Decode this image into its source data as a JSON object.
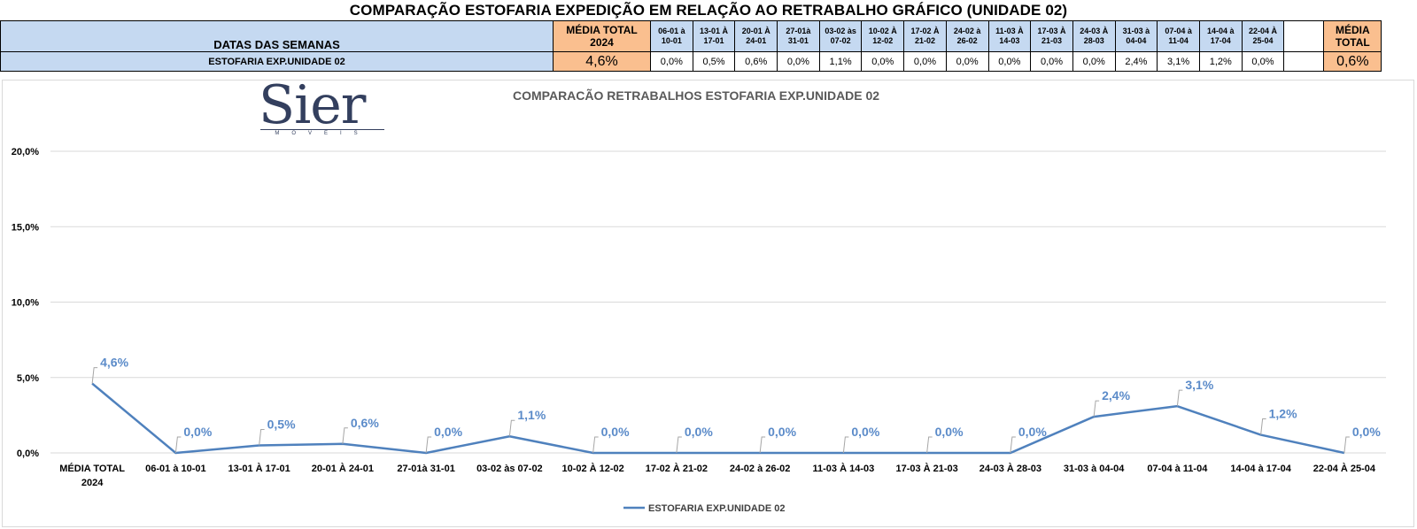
{
  "page_title": "COMPARAÇÃO ESTOFARIA EXPEDIÇÃO  EM RELAÇÃO AO RETRABALHO GRÁFICO (UNIDADE 02)",
  "table": {
    "header_label": "DATAS DAS SEMANAS",
    "avg_2024_header": [
      "MÉDIA TOTAL",
      "2024"
    ],
    "week_headers": [
      [
        "06-01 à",
        "10-01"
      ],
      [
        "13-01 À",
        "17-01"
      ],
      [
        "20-01 À",
        "24-01"
      ],
      [
        "27-01à",
        "31-01"
      ],
      [
        "03-02 às",
        "07-02"
      ],
      [
        "10-02 À",
        "12-02"
      ],
      [
        "17-02 À",
        "21-02"
      ],
      [
        "24-02 à",
        "26-02"
      ],
      [
        "11-03 À",
        "14-03"
      ],
      [
        "17-03 À",
        "21-03"
      ],
      [
        "24-03 À",
        "28-03"
      ],
      [
        "31-03 à",
        "04-04"
      ],
      [
        "07-04 à",
        "11-04"
      ],
      [
        "14-04 à",
        "17-04"
      ],
      [
        "22-04 À",
        "25-04"
      ]
    ],
    "avg_total_header": [
      "MÉDIA",
      "TOTAL"
    ],
    "row_label": "ESTOFARIA EXP.UNIDADE 02",
    "avg_2024_value": "4,6%",
    "week_values": [
      "0,0%",
      "0,5%",
      "0,6%",
      "0,0%",
      "1,1%",
      "0,0%",
      "0,0%",
      "0,0%",
      "0,0%",
      "0,0%",
      "0,0%",
      "2,4%",
      "3,1%",
      "1,2%",
      "0,0%"
    ],
    "avg_total_value": "0,6%"
  },
  "logo": {
    "text": "Sier",
    "subtext": "MÓVEIS"
  },
  "colors": {
    "header_blue": "#c5d9f1",
    "header_orange": "#fabf8f",
    "series_line": "#4f81bd",
    "data_label": "#5b8bc9"
  },
  "chart_data": {
    "type": "line",
    "title": "COMPARACÃO RETRABALHOS  ESTOFARIA EXP.UNIDADE 02",
    "categories": [
      [
        "MÉDIA TOTAL",
        "2024"
      ],
      [
        "06-01 à 10-01"
      ],
      [
        "13-01 À 17-01"
      ],
      [
        "20-01 À 24-01"
      ],
      [
        "27-01à 31-01"
      ],
      [
        "03-02 às 07-02"
      ],
      [
        "10-02 À 12-02"
      ],
      [
        "17-02 À 21-02"
      ],
      [
        "24-02 à 26-02"
      ],
      [
        "11-03 À 14-03"
      ],
      [
        "17-03 À 21-03"
      ],
      [
        "24-03 À 28-03"
      ],
      [
        "31-03 à 04-04"
      ],
      [
        "07-04 à 11-04"
      ],
      [
        "14-04 à 17-04"
      ],
      [
        "22-04 À 25-04"
      ]
    ],
    "series": [
      {
        "name": "ESTOFARIA EXP.UNIDADE 02",
        "values": [
          4.6,
          0.0,
          0.5,
          0.6,
          0.0,
          1.1,
          0.0,
          0.0,
          0.0,
          0.0,
          0.0,
          0.0,
          2.4,
          3.1,
          1.2,
          0.0
        ],
        "labels": [
          "4,6%",
          "0,0%",
          "0,5%",
          "0,6%",
          "0,0%",
          "1,1%",
          "0,0%",
          "0,0%",
          "0,0%",
          "0,0%",
          "0,0%",
          "0,0%",
          "2,4%",
          "3,1%",
          "1,2%",
          "0,0%"
        ]
      }
    ],
    "ylim": [
      0,
      20
    ],
    "yticks": [
      0,
      5,
      10,
      15,
      20
    ],
    "ytick_labels": [
      "0,0%",
      "5,0%",
      "10,0%",
      "15,0%",
      "20,0%"
    ],
    "grid": true,
    "legend": "bottom"
  }
}
